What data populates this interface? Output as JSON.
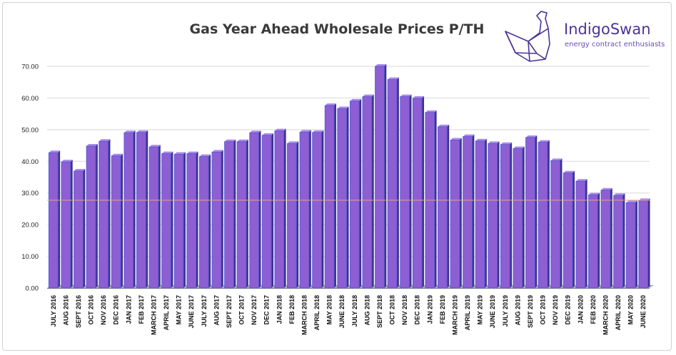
{
  "brand": {
    "name": "IndigoSwan",
    "tagline": "energy contract enthusiasts",
    "logo_icon": "origami-swan-icon"
  },
  "colors": {
    "bar_face": "#8d5fd3",
    "bar_top": "#a98ae6",
    "bar_side": "#3e2f8f",
    "bar_stroke": "#5b5bd6",
    "gridline": "#d8d8d8",
    "reference_line": "#e8a08a",
    "floor": "#a9a9a9",
    "brand": "#4b3496"
  },
  "chart_data": {
    "type": "bar",
    "title": "Gas Year Ahead Wholesale Prices P/TH",
    "xlabel": "",
    "ylabel": "",
    "ylim": [
      0,
      70
    ],
    "yticks": [
      "0.00",
      "10.00",
      "20.00",
      "30.00",
      "40.00",
      "50.00",
      "60.00",
      "70.00"
    ],
    "grid": true,
    "reference_value": 27.7,
    "categories": [
      "JULY 2016",
      "AUG 2016",
      "SEPT 2016",
      "OCT 2016",
      "NOV 2016",
      "DEC 2016",
      "JAN 2017",
      "FEB 2017",
      "MARCH 2017",
      "APRIL 2017",
      "MAY 2017",
      "JUNE 2017",
      "JULY 2017",
      "AUG 2017",
      "SEPT 2017",
      "OCT 2017",
      "NOV 2017",
      "DEC 2017",
      "JAN 2018",
      "FEB 2018",
      "MARCH 2018",
      "APRIL 2018",
      "MAY 2018",
      "JUNE 2018",
      "JULY 2018",
      "AUG 2018",
      "SEPT 2018",
      "OCT 2018",
      "NOV 2018",
      "DEC 2018",
      "JAN 2019",
      "FEB 2019",
      "MARCH 2019",
      "APRIL 2019",
      "MAY 2019",
      "JUNE 2019",
      "JULY 2019",
      "AUG 2019",
      "SEPT 2019",
      "OCT 2019",
      "NOV 2019",
      "DEC 2019",
      "JAN 2020",
      "FEB 2020",
      "MARCH 2020",
      "APRIL 2020",
      "MAY 2020",
      "JUNE 2020"
    ],
    "values": [
      42.7,
      39.8,
      36.9,
      44.8,
      46.3,
      41.7,
      49.0,
      49.1,
      44.5,
      42.4,
      42.2,
      42.4,
      41.5,
      42.9,
      46.2,
      46.2,
      49.0,
      48.2,
      49.6,
      45.6,
      49.2,
      49.1,
      57.6,
      56.6,
      59.0,
      60.4,
      70.0,
      65.8,
      60.4,
      59.9,
      55.4,
      50.9,
      46.7,
      47.8,
      46.4,
      45.6,
      45.3,
      44.0,
      47.5,
      46.0,
      40.2,
      36.3,
      33.7,
      29.4,
      30.9,
      29.2,
      26.9,
      27.6
    ]
  }
}
